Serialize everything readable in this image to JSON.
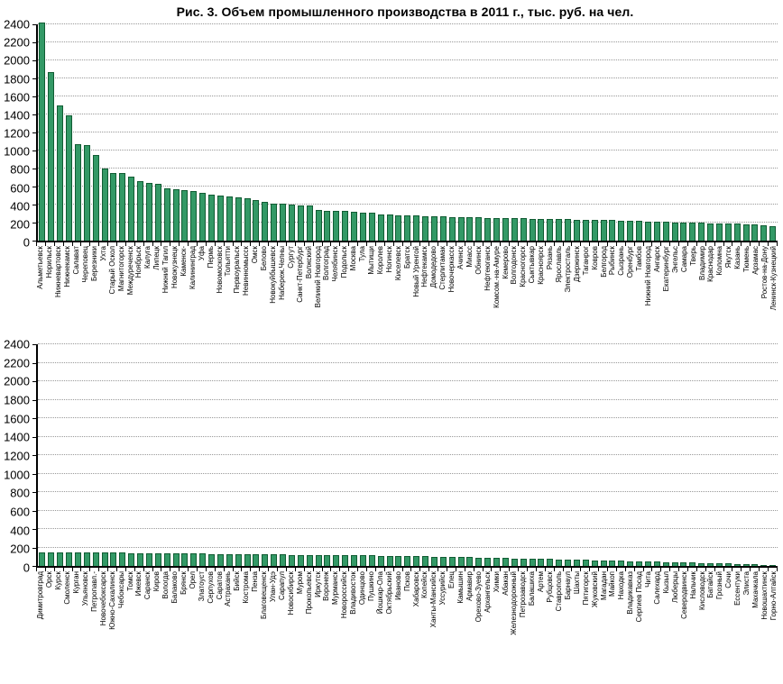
{
  "title": "Рис. 3. Объем промышленного производства в 2011 г., тыс. руб. на чел.",
  "colors": {
    "bar_fill": "#339966",
    "bar_border": "#115c33",
    "gridline": "#999999",
    "axis": "#000000",
    "background": "#ffffff"
  },
  "chart_data": [
    {
      "type": "bar",
      "title": "Рис. 3. Объем промышленного производства в 2011 г., тыс. руб. на чел.",
      "xlabel": "",
      "ylabel": "",
      "ylim": [
        0,
        2400
      ],
      "ytick_step": 200,
      "grid": true,
      "legend": "none",
      "categories": [
        "Альметьевск",
        "Норильск",
        "Нижневартовск",
        "Нижнекамск",
        "Салават",
        "Череповец",
        "Березники",
        "Ухта",
        "Старый Оскол",
        "Магнитогорск",
        "Междуреченск",
        "Ноябрьск",
        "Калуга",
        "Липецк",
        "Нижний Тагил",
        "Новокузнецк",
        "Каменск-",
        "Калининград",
        "Уфа",
        "Пермь",
        "Новомосковск",
        "Тольятти",
        "Первоуральск",
        "Невинномысск",
        "Омск",
        "Белово",
        "Новокуйбышевск",
        "Набереж.Челны",
        "Сургут",
        "Санкт-Петербург",
        "Волжский",
        "Великий Новгород",
        "Волгоград",
        "Челябинск",
        "Подольск",
        "Москва",
        "Тула",
        "Мытищи",
        "Королев",
        "Ногинск",
        "Киселевск",
        "Братск",
        "Новый Уренгой",
        "Нефтекамск",
        "Домодедово",
        "Стерлитамак",
        "Новочеркасск",
        "Ачинск",
        "Миасс",
        "Обнинск",
        "Нефтеюганск",
        "Комсом.-на-Амуре",
        "Кемерово",
        "Волгодонск",
        "Красногорск",
        "Сыктывкар",
        "Красноярск",
        "Рязань",
        "Ярославль",
        "Электросталь",
        "Дзержинск",
        "Таганрог",
        "Ковров",
        "Белгород",
        "Рыбинск",
        "Сызрань",
        "Оренбург",
        "Тамбов",
        "Нижний Новгород",
        "Ангарск",
        "Екатеринбург",
        "Энгельс",
        "Самара",
        "Тверь",
        "Владимир",
        "Краснодар",
        "Коломна",
        "Якутск",
        "Казань",
        "Тюмень",
        "Арзамас",
        "Ростов-на-Дону",
        "Ленинск-Кузнецкий"
      ],
      "values": [
        2420,
        1870,
        1500,
        1390,
        1070,
        1065,
        950,
        800,
        755,
        750,
        710,
        660,
        640,
        635,
        580,
        570,
        562,
        553,
        535,
        510,
        500,
        487,
        483,
        473,
        455,
        426,
        410,
        406,
        399,
        393,
        386,
        340,
        333,
        331,
        329,
        323,
        315,
        312,
        293,
        286,
        283,
        280,
        277,
        274,
        271,
        268,
        265,
        262,
        260,
        258,
        255,
        252,
        250,
        248,
        246,
        244,
        242,
        240,
        238,
        236,
        234,
        232,
        230,
        228,
        226,
        224,
        222,
        220,
        213,
        209,
        206,
        203,
        201,
        199,
        197,
        195,
        193,
        191,
        187,
        182,
        176,
        168,
        157
      ]
    },
    {
      "type": "bar",
      "title": "",
      "xlabel": "",
      "ylabel": "",
      "ylim": [
        0,
        2400
      ],
      "ytick_step": 200,
      "grid": true,
      "legend": "none",
      "categories": [
        "Димитровград",
        "Орск",
        "Курск",
        "Смоленск",
        "Курган",
        "Ульяновск",
        "Петропавл.-",
        "Новочебоксарск",
        "Южно-Сахалинск",
        "Чебоксары",
        "Томск",
        "Ижевск",
        "Саранск",
        "Киров",
        "Вологда",
        "Балаково",
        "Брянск",
        "Орел",
        "Златоуст",
        "Серпухов",
        "Саратов",
        "Астрахань",
        "Бийск",
        "Кострома",
        "Пенза",
        "Благовещенск",
        "Улан-Удэ",
        "Сарапул",
        "Новосибирск",
        "Муром",
        "Прокопьевск",
        "Иркутск",
        "Воронеж",
        "Мурманск",
        "Новороссийск",
        "Владивосток",
        "Одинцово",
        "Пушкино",
        "Йошкар-Ола",
        "Октябрьский",
        "Иваново",
        "Псков",
        "Хабаровск",
        "Копейск",
        "Ханты-Мансийск",
        "Уссурийск",
        "Елец",
        "Камышин",
        "Армавир",
        "Орехово-Зуево",
        "Архангельск",
        "Химки",
        "Абакан",
        "Железнодорожный",
        "Петрозаводск",
        "Балашиха",
        "Артем",
        "Рубцовск",
        "Ставрополь",
        "Барнаул",
        "Шахты",
        "Пятигорск",
        "Жуковский",
        "Магадан",
        "Майкоп",
        "Находка",
        "Владикавказ",
        "Сергиев Посад",
        "Чита",
        "Салехард",
        "Кызыл",
        "Люберцы",
        "Северодвинск",
        "Нальчик",
        "Кисловодск",
        "Батайск",
        "Грозный",
        "Сочи",
        "Ессентуки",
        "Элиста",
        "Махачкала",
        "Новошахтинск",
        "Горно-Алтайск"
      ],
      "values": [
        150,
        149,
        148,
        148,
        147,
        146,
        145,
        144,
        143,
        142,
        140,
        139,
        138,
        137,
        136,
        135,
        134,
        133,
        132,
        131,
        130,
        129,
        128,
        127,
        126,
        125,
        124,
        123,
        122,
        121,
        120,
        119,
        118,
        117,
        116,
        115,
        114,
        113,
        112,
        111,
        109,
        107,
        105,
        103,
        101,
        99,
        97,
        95,
        93,
        91,
        89,
        87,
        85,
        83,
        81,
        79,
        77,
        75,
        73,
        71,
        68,
        65,
        63,
        60,
        58,
        55,
        53,
        50,
        48,
        45,
        42,
        40,
        38,
        35,
        32,
        30,
        28,
        25,
        22,
        20,
        16,
        12,
        7
      ]
    }
  ]
}
